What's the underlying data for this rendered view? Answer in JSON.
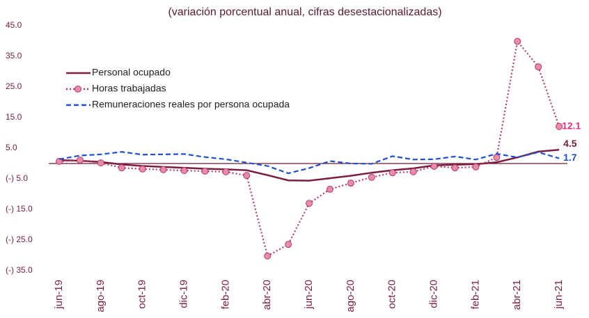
{
  "chart_data": {
    "type": "line",
    "title": "(variación porcentual anual, cifras desestacionalizadas)",
    "categories": [
      "jun-19",
      null,
      "ago-19",
      null,
      "oct-19",
      null,
      "dic-19",
      null,
      "feb-20",
      null,
      "abr-20",
      null,
      "jun-20",
      null,
      "ago-20",
      null,
      "oct-20",
      null,
      "dic-20",
      null,
      "feb-21",
      null,
      "abr-21",
      null,
      "jun-21"
    ],
    "series": [
      {
        "name": "Personal ocupado",
        "color": "#7a1d3f",
        "style": "solid",
        "values": [
          1.1,
          0.9,
          0.5,
          -0.3,
          -0.8,
          -1.1,
          -1.4,
          -1.7,
          -1.9,
          -2.2,
          -3.8,
          -5.5,
          -5.6,
          -4.8,
          -4.0,
          -3.0,
          -2.2,
          -1.6,
          -0.6,
          -0.4,
          -0.2,
          0.4,
          2.0,
          3.9,
          4.5
        ]
      },
      {
        "name": "Horas trabajadas",
        "color": "#b33a6a",
        "marker_color": "#e88ca8",
        "style": "dotted",
        "label_color": "#e0307f",
        "values": [
          0.7,
          1.1,
          0.2,
          -1.4,
          -1.8,
          -2.0,
          -2.3,
          -2.5,
          -2.7,
          -3.9,
          -30.2,
          -26.4,
          -13.0,
          -8.4,
          -6.4,
          -4.5,
          -3.0,
          -2.7,
          -0.9,
          -1.4,
          -1.1,
          2.0,
          39.9,
          31.6,
          12.1
        ]
      },
      {
        "name": "Remuneraciones reales por persona ocupada",
        "color": "#1f4fd1",
        "style": "dashed",
        "values": [
          1.4,
          2.6,
          3.0,
          3.8,
          2.9,
          3.0,
          3.1,
          2.1,
          1.4,
          0.3,
          -0.8,
          -3.2,
          -1.5,
          0.8,
          0.0,
          -0.1,
          2.4,
          1.3,
          1.4,
          2.3,
          1.3,
          3.2,
          2.0,
          3.7,
          1.7
        ]
      }
    ],
    "ylim": [
      -35,
      45
    ],
    "yticks": [
      {
        "value": 45,
        "label": "45.0"
      },
      {
        "value": 35,
        "label": "35.0"
      },
      {
        "value": 25,
        "label": "25.0"
      },
      {
        "value": 15,
        "label": "15.0"
      },
      {
        "value": 5,
        "label": "5.0"
      },
      {
        "value": -5,
        "label": "(-) 5.0"
      },
      {
        "value": -15,
        "label": "(-) 15.0"
      },
      {
        "value": -25,
        "label": "(-) 25.0"
      },
      {
        "value": -35,
        "label": "(-) 35.0"
      }
    ],
    "legend": "upper left"
  }
}
